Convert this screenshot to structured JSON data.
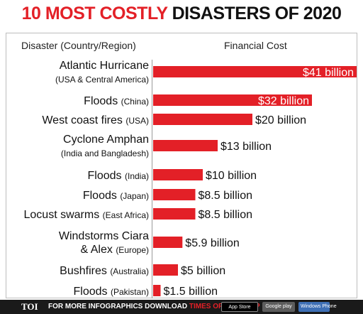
{
  "header": {
    "title_red": "10 MOST COSTLY",
    "title_dark": "DISASTERS OF 2020"
  },
  "columns": {
    "left": "Disaster (Country/Region)",
    "right": "Financial Cost"
  },
  "chart_data": {
    "type": "bar",
    "orientation": "horizontal",
    "unit": "billion USD",
    "categories": [
      {
        "main": "Atlantic Hurricane",
        "sub": "",
        "line2": "(USA & Central Americа)"
      },
      {
        "main": "Floods",
        "sub": "(China)",
        "line2": ""
      },
      {
        "main": "West coast fires",
        "sub": "(USA)",
        "line2": ""
      },
      {
        "main": "Cyclone Amphan",
        "sub": "",
        "line2": "(India and Bangladesh)"
      },
      {
        "main": "Floods",
        "sub": "(India)",
        "line2": ""
      },
      {
        "main": "Floods",
        "sub": "(Japan)",
        "line2": ""
      },
      {
        "main": "Locust swarms",
        "sub": "(East Africa)",
        "line2": ""
      },
      {
        "main": "Windstorms Ciara",
        "sub": "",
        "line2": "& Alex",
        "line2_sub": "(Europe)"
      },
      {
        "main": "Bushfires",
        "sub": "(Australia)",
        "line2": ""
      },
      {
        "main": "Floods",
        "sub": "(Pakistan)",
        "line2": ""
      }
    ],
    "values": [
      41,
      32,
      20,
      13,
      10,
      8.5,
      8.5,
      5.9,
      5,
      1.5
    ],
    "value_labels": [
      "$41 billion",
      "$32 billion",
      "$20 billion",
      "$13 billion",
      "$10 billion",
      "$8.5 billion",
      "$8.5 billion",
      "$5.9 billion",
      "$5 billion",
      "$1.5 billion"
    ],
    "label_inside": [
      true,
      true,
      false,
      false,
      false,
      false,
      false,
      false,
      false,
      false
    ],
    "bar_color": "#e32027"
  },
  "footer": {
    "logo": "TOI",
    "text": "FOR MORE  INFOGRAPHICS DOWNLOAD",
    "highlight": "TIMES OF INDIA  APP",
    "badges": [
      "App Store",
      "Google play",
      "Windows Phone"
    ]
  }
}
